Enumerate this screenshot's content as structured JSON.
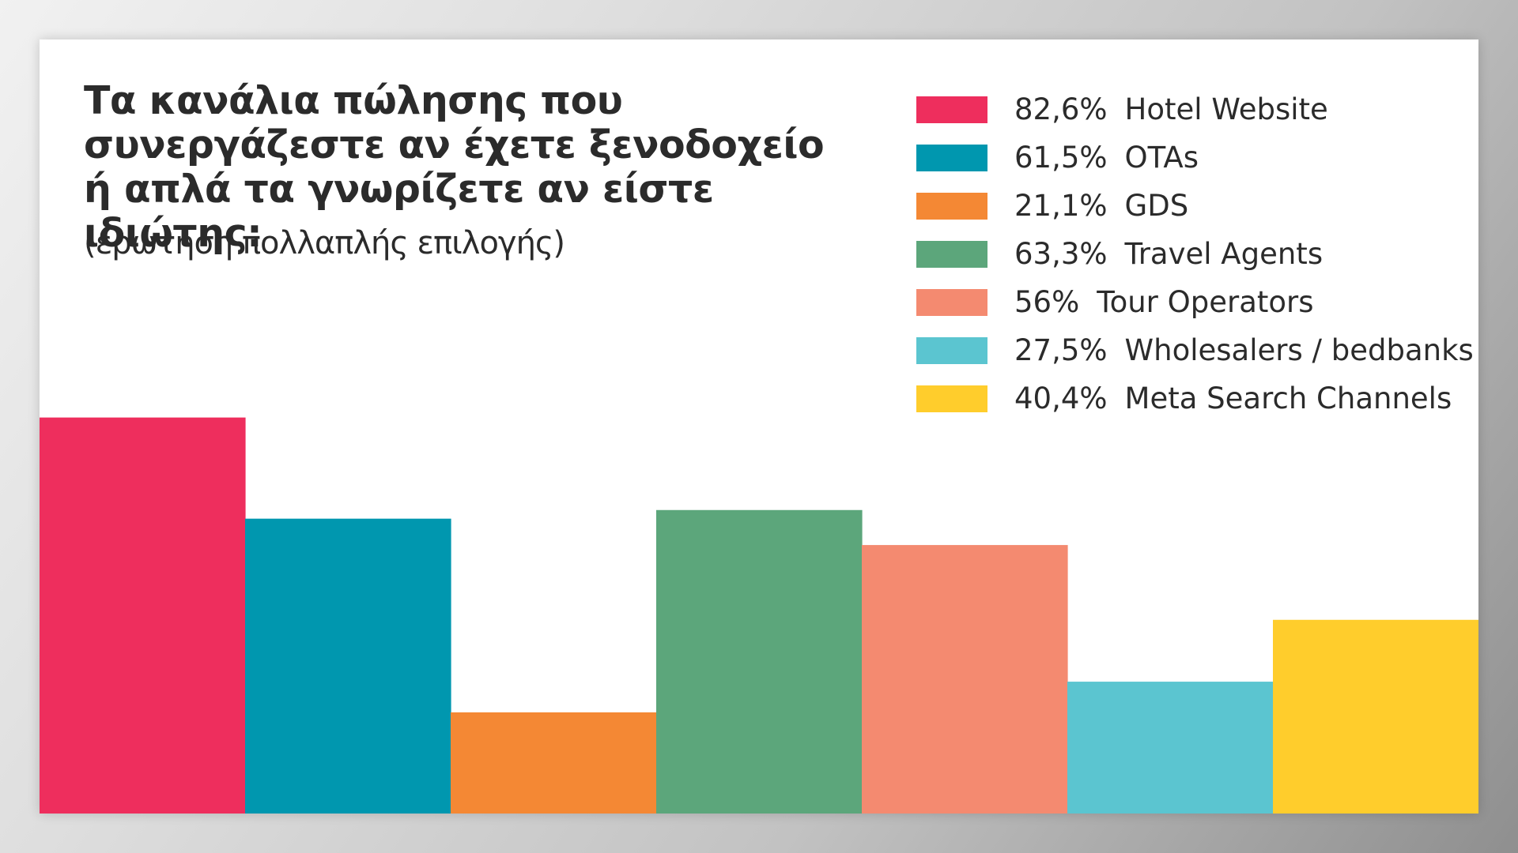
{
  "title_lines": [
    "Τα κανάλια πώλησης που",
    "συνεργάζεστε αν έχετε ξενοδοχείο",
    "ή απλά τα γνωρίζετε αν είστε ιδιώτης:"
  ],
  "subtitle": "(ερώτηση πολλαπλής επιλογής)",
  "legend": [
    {
      "pct": "82,6%",
      "label": "Hotel Website"
    },
    {
      "pct": "61,5%",
      "label": "OTAs"
    },
    {
      "pct": "21,1%",
      "label": "GDS"
    },
    {
      "pct": "63,3%",
      "label": "Travel Agents"
    },
    {
      "pct": "56%",
      "label": "Tour Operators"
    },
    {
      "pct": "27,5%",
      "label": "Wholesalers / bedbanks"
    },
    {
      "pct": "40,4%",
      "label": "Meta Search Channels"
    }
  ],
  "chart_data": {
    "type": "bar",
    "title": "Τα κανάλια πώλησης που συνεργάζεστε αν έχετε ξενοδοχείο ή απλά τα γνωρίζετε αν είστε ιδιώτης:",
    "subtitle": "(ερώτηση πολλαπλής επιλογής)",
    "categories": [
      "Hotel Website",
      "OTAs",
      "GDS",
      "Travel Agents",
      "Tour Operators",
      "Wholesalers / bedbanks",
      "Meta Search Channels"
    ],
    "values": [
      82.6,
      61.5,
      21.1,
      63.3,
      56,
      27.5,
      40.4
    ],
    "colors": [
      "#ee2e5d",
      "#0097af",
      "#f48834",
      "#5ca67b",
      "#f48a70",
      "#5bc5d0",
      "#ffcd2c"
    ],
    "xlabel": "",
    "ylabel": "",
    "ylim": [
      0,
      100
    ],
    "grid": false,
    "legend_position": "top-right"
  }
}
